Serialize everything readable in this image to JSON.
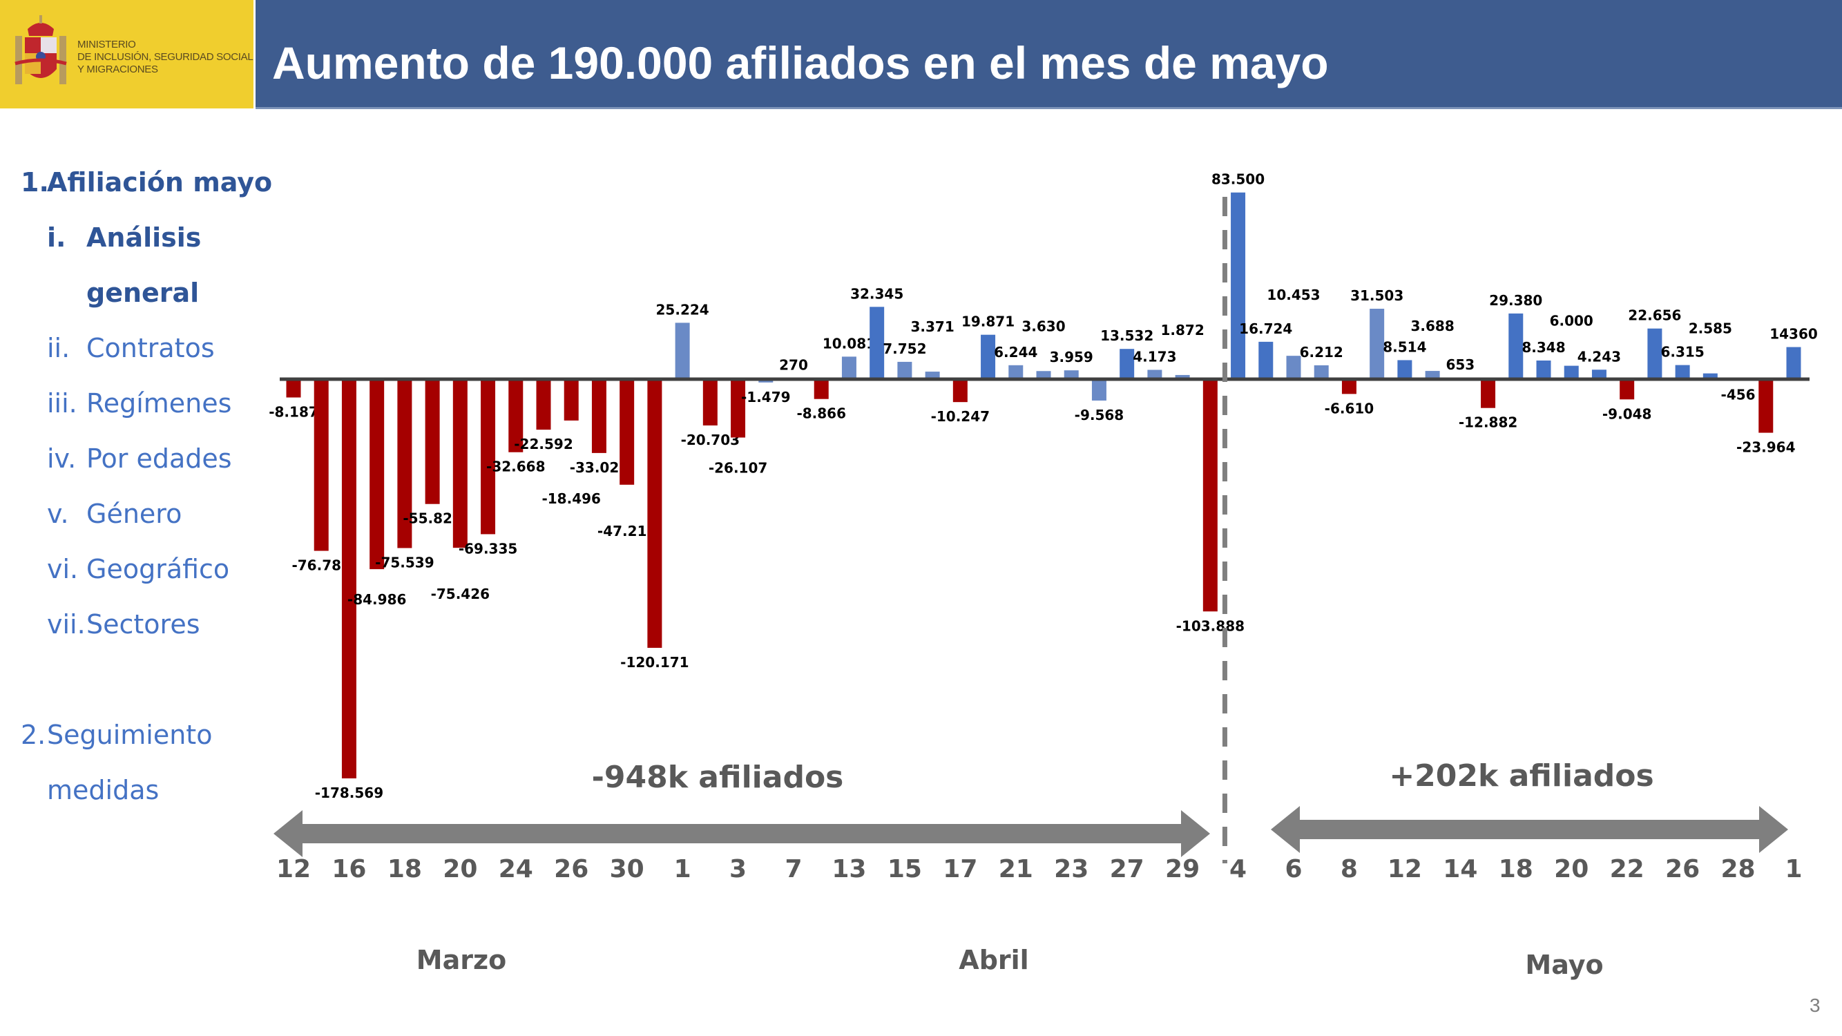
{
  "header": {
    "logo_text": [
      "MINISTERIO",
      "DE INCLUSIÓN, SEGURIDAD SOCIAL",
      "Y MIGRACIONES"
    ],
    "title": "Aumento de 190.000 afiliados en el mes de mayo",
    "logo_color": "#F0CE2E",
    "band_color": "#3E5C8F"
  },
  "sidebar": {
    "items": [
      {
        "num": "1.",
        "label": "Afiliación mayo",
        "bold": true
      },
      {
        "num": "i.",
        "label": "Análisis",
        "bold": true
      },
      {
        "num": "",
        "label": "general",
        "bold": true
      },
      {
        "num": "ii.",
        "label": "Contratos",
        "bold": false
      },
      {
        "num": "iii.",
        "label": "Regímenes",
        "bold": false
      },
      {
        "num": "iv.",
        "label": "Por edades",
        "bold": false
      },
      {
        "num": "v.",
        "label": "Género",
        "bold": false
      },
      {
        "num": "vi.",
        "label": "Geográfico",
        "bold": false
      },
      {
        "num": "vii.",
        "label": "Sectores",
        "bold": false
      },
      {
        "num": "2.",
        "label": "Seguimiento",
        "bold": false
      },
      {
        "num": "",
        "label": "medidas",
        "bold": false
      }
    ]
  },
  "chart_data": {
    "type": "bar",
    "title": "",
    "values": [
      -8187,
      -76787,
      -178569,
      -84986,
      -75539,
      -55829,
      -75426,
      -69335,
      -32668,
      -22592,
      -18496,
      -33022,
      -47215,
      -120171,
      25224,
      -20703,
      -26107,
      -1479,
      270,
      -8866,
      10081,
      32345,
      7752,
      3371,
      -10247,
      19871,
      6244,
      3630,
      3959,
      -9568,
      13532,
      4173,
      1872,
      -103888,
      83500,
      16724,
      10453,
      6212,
      -6610,
      31503,
      8514,
      3688,
      653,
      -12882,
      29380,
      8348,
      6000,
      4243,
      -9048,
      22656,
      6315,
      2585,
      -456,
      -23964,
      14360
    ],
    "data_labels": [
      "-8.187",
      "-76.787",
      "-178.569",
      "-84.986",
      "-75.539",
      "-55.829",
      "-75.426",
      "-69.335",
      "-32.668",
      "-22.592",
      "-18.496",
      "-33.022",
      "-47.215",
      "-120.171",
      "25.224",
      "-20.703",
      "-26.107",
      "-1.479",
      "270",
      "-8.866",
      "10.081",
      "32.345",
      "7.752",
      "3.371",
      "-10.247",
      "19.871",
      "6.244",
      "3.630",
      "3.959",
      "-9.568",
      "13.532",
      "4.173",
      "1.872",
      "-103.888",
      "83.500",
      "16.724",
      "10.453",
      "6.212",
      "-6.610",
      "31.503",
      "8.514",
      "3.688",
      "653",
      "-12.882",
      "29.380",
      "8.348",
      "6.000",
      "4.243",
      "-9.048",
      "22.656",
      "6.315",
      "2.585",
      "-456",
      "-23.964",
      "14360"
    ],
    "light_bars": [
      15,
      18,
      19,
      21,
      23,
      24,
      27,
      28,
      29,
      30,
      32,
      33,
      37,
      38,
      40,
      42,
      43
    ],
    "tick_labels": [
      "12",
      "16",
      "18",
      "20",
      "24",
      "26",
      "30",
      "1",
      "3",
      "7",
      "13",
      "15",
      "17",
      "21",
      "23",
      "27",
      "29",
      "4",
      "6",
      "8",
      "12",
      "14",
      "18",
      "20",
      "22",
      "26",
      "28",
      "1"
    ],
    "months": [
      "Marzo",
      "Abril",
      "Mayo"
    ],
    "annotations": [
      "-948k afiliados",
      "+202k afiliados"
    ],
    "divider_after_bar": 34,
    "colors": {
      "negative": "#A50000",
      "positive": "#4472C4",
      "positive_light": "#6A8AC6",
      "axis": "#404040",
      "arrow": "#7F7F7F"
    },
    "ylim": [
      -178569,
      83500
    ],
    "grid": false
  },
  "footer": {
    "page_number": "3"
  }
}
